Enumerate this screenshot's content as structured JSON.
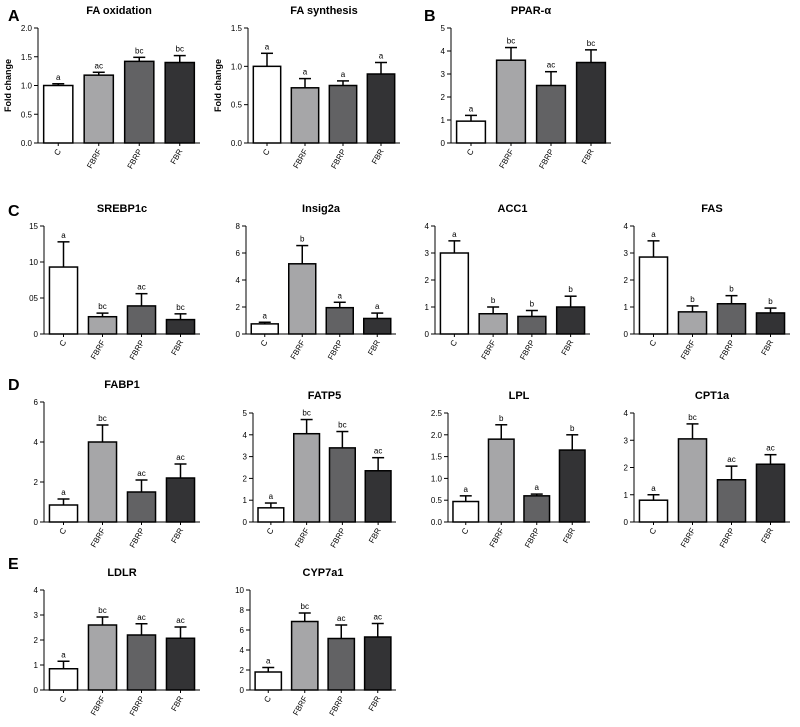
{
  "figure": {
    "panel_letters": [
      {
        "letter": "A"
      },
      {
        "letter": "B"
      },
      {
        "letter": "C"
      },
      {
        "letter": "D"
      },
      {
        "letter": "E"
      }
    ],
    "bar_colors": [
      "#ffffff",
      "#a6a6a8",
      "#626264",
      "#333335"
    ]
  },
  "chart_data": [
    {
      "id": "fa-oxidation",
      "type": "bar",
      "title": "FA oxidation",
      "ylabel": "Fold change",
      "categories": [
        "C",
        "FBRF",
        "FBRP",
        "FBR"
      ],
      "values": [
        1.0,
        1.18,
        1.42,
        1.4
      ],
      "errors": [
        0.03,
        0.05,
        0.07,
        0.12
      ],
      "sig": [
        "a",
        "ac",
        "bc",
        "bc"
      ],
      "ylim": [
        0,
        2.0
      ],
      "yticks": [
        0,
        0.5,
        1.0,
        1.5,
        2.0
      ],
      "ytick_labels": [
        "0.0",
        "0.5",
        "1.0",
        "1.5",
        "2.0"
      ]
    },
    {
      "id": "fa-synthesis",
      "type": "bar",
      "title": "FA synthesis",
      "ylabel": "Fold change",
      "categories": [
        "C",
        "FBRF",
        "FBRP",
        "FBR"
      ],
      "values": [
        1.0,
        0.72,
        0.75,
        0.9
      ],
      "errors": [
        0.17,
        0.12,
        0.06,
        0.15
      ],
      "sig": [
        "a",
        "a",
        "a",
        "a"
      ],
      "ylim": [
        0,
        1.5
      ],
      "yticks": [
        0,
        0.5,
        1.0,
        1.5
      ],
      "ytick_labels": [
        "0.0",
        "0.5",
        "1.0",
        "1.5"
      ]
    },
    {
      "id": "ppar-alpha",
      "type": "bar",
      "title": "PPAR-α",
      "ylabel": "",
      "categories": [
        "C",
        "FBRF",
        "FBRP",
        "FBR"
      ],
      "values": [
        0.95,
        3.6,
        2.5,
        3.5
      ],
      "errors": [
        0.25,
        0.55,
        0.6,
        0.55
      ],
      "sig": [
        "a",
        "bc",
        "ac",
        "bc"
      ],
      "ylim": [
        0,
        5
      ],
      "yticks": [
        0,
        1,
        2,
        3,
        4,
        5
      ],
      "ytick_labels": [
        "0",
        "1",
        "2",
        "3",
        "4",
        "5"
      ]
    },
    {
      "id": "srebp1c",
      "type": "bar",
      "title": "SREBP1c",
      "ylabel": "",
      "categories": [
        "C",
        "FBRF",
        "FBRP",
        "FBR"
      ],
      "values": [
        9.3,
        2.4,
        3.9,
        2.0
      ],
      "errors": [
        3.5,
        0.5,
        1.7,
        0.8
      ],
      "sig": [
        "a",
        "bc",
        "ac",
        "bc"
      ],
      "ylim": [
        0,
        15
      ],
      "yticks": [
        0,
        5,
        10,
        15
      ],
      "ytick_labels": [
        "0",
        "05",
        "10",
        "15"
      ]
    },
    {
      "id": "insig2a",
      "type": "bar",
      "title": "Insig2a",
      "ylabel": "",
      "categories": [
        "C",
        "FBRF",
        "FBRP",
        "FBR"
      ],
      "values": [
        0.75,
        5.2,
        1.95,
        1.15
      ],
      "errors": [
        0.12,
        1.35,
        0.4,
        0.4
      ],
      "sig": [
        "a",
        "b",
        "a",
        "a"
      ],
      "ylim": [
        0,
        8
      ],
      "yticks": [
        0,
        2,
        4,
        6,
        8
      ],
      "ytick_labels": [
        "0",
        "2",
        "4",
        "6",
        "8"
      ]
    },
    {
      "id": "acc1",
      "type": "bar",
      "title": "ACC1",
      "ylabel": "",
      "categories": [
        "C",
        "FBRF",
        "FBRP",
        "FBR"
      ],
      "values": [
        3.0,
        0.75,
        0.65,
        1.0
      ],
      "errors": [
        0.45,
        0.25,
        0.22,
        0.4
      ],
      "sig": [
        "a",
        "b",
        "b",
        "b"
      ],
      "ylim": [
        0,
        4
      ],
      "yticks": [
        0,
        1,
        2,
        3,
        4
      ],
      "ytick_labels": [
        "0",
        "1",
        "2",
        "3",
        "4"
      ]
    },
    {
      "id": "fas",
      "type": "bar",
      "title": "FAS",
      "ylabel": "",
      "categories": [
        "C",
        "FBRF",
        "FBRP",
        "FBR"
      ],
      "values": [
        2.85,
        0.82,
        1.12,
        0.78
      ],
      "errors": [
        0.6,
        0.22,
        0.3,
        0.18
      ],
      "sig": [
        "a",
        "b",
        "b",
        "b"
      ],
      "ylim": [
        0,
        4
      ],
      "yticks": [
        0,
        1,
        2,
        3,
        4
      ],
      "ytick_labels": [
        "0",
        "1",
        "2",
        "3",
        "4"
      ]
    },
    {
      "id": "fabp1",
      "type": "bar",
      "title": "FABP1",
      "ylabel": "",
      "categories": [
        "C",
        "FBRF",
        "FBRP",
        "FBR"
      ],
      "values": [
        0.85,
        4.0,
        1.5,
        2.2
      ],
      "errors": [
        0.3,
        0.85,
        0.6,
        0.7
      ],
      "sig": [
        "a",
        "bc",
        "ac",
        "ac"
      ],
      "ylim": [
        0,
        6
      ],
      "yticks": [
        0,
        2,
        4,
        6
      ],
      "ytick_labels": [
        "0",
        "2",
        "4",
        "6"
      ]
    },
    {
      "id": "fatp5",
      "type": "bar",
      "title": "FATP5",
      "ylabel": "",
      "categories": [
        "C",
        "FBRF",
        "FBRP",
        "FBR"
      ],
      "values": [
        0.65,
        4.05,
        3.4,
        2.35
      ],
      "errors": [
        0.22,
        0.65,
        0.75,
        0.6
      ],
      "sig": [
        "a",
        "bc",
        "bc",
        "ac"
      ],
      "ylim": [
        0,
        5
      ],
      "yticks": [
        0,
        1,
        2,
        3,
        4,
        5
      ],
      "ytick_labels": [
        "0",
        "1",
        "2",
        "3",
        "4",
        "5"
      ]
    },
    {
      "id": "lpl",
      "type": "bar",
      "title": "LPL",
      "ylabel": "",
      "categories": [
        "C",
        "FBRF",
        "FBRP",
        "FBR"
      ],
      "values": [
        0.47,
        1.9,
        0.6,
        1.65
      ],
      "errors": [
        0.13,
        0.33,
        0.04,
        0.35
      ],
      "sig": [
        "a",
        "b",
        "a",
        "b"
      ],
      "ylim": [
        0,
        2.5
      ],
      "yticks": [
        0,
        0.5,
        1.0,
        1.5,
        2.0,
        2.5
      ],
      "ytick_labels": [
        "0.0",
        "0.5",
        "1.0",
        "1.5",
        "2.0",
        "2.5"
      ]
    },
    {
      "id": "cpt1a",
      "type": "bar",
      "title": "CPT1a",
      "ylabel": "",
      "categories": [
        "C",
        "FBRF",
        "FBRP",
        "FBR"
      ],
      "values": [
        0.8,
        3.05,
        1.55,
        2.12
      ],
      "errors": [
        0.2,
        0.55,
        0.5,
        0.35
      ],
      "sig": [
        "a",
        "bc",
        "ac",
        "ac"
      ],
      "ylim": [
        0,
        4
      ],
      "yticks": [
        0,
        1,
        2,
        3,
        4
      ],
      "ytick_labels": [
        "0",
        "1",
        "2",
        "3",
        "4"
      ]
    },
    {
      "id": "ldlr",
      "type": "bar",
      "title": "LDLR",
      "ylabel": "",
      "categories": [
        "C",
        "FBRF",
        "FBRP",
        "FBR"
      ],
      "values": [
        0.85,
        2.6,
        2.2,
        2.07
      ],
      "errors": [
        0.3,
        0.32,
        0.45,
        0.45
      ],
      "sig": [
        "a",
        "bc",
        "ac",
        "ac"
      ],
      "ylim": [
        0,
        4
      ],
      "yticks": [
        0,
        1,
        2,
        3,
        4
      ],
      "ytick_labels": [
        "0",
        "1",
        "2",
        "3",
        "4"
      ]
    },
    {
      "id": "cyp7a1",
      "type": "bar",
      "title": "CYP7a1",
      "ylabel": "",
      "categories": [
        "C",
        "FBRF",
        "FBRP",
        "FBR"
      ],
      "values": [
        1.8,
        6.85,
        5.15,
        5.3
      ],
      "errors": [
        0.45,
        0.85,
        1.35,
        1.35
      ],
      "sig": [
        "a",
        "bc",
        "ac",
        "ac"
      ],
      "ylim": [
        0,
        10
      ],
      "yticks": [
        0,
        2,
        4,
        6,
        8,
        10
      ],
      "ytick_labels": [
        "0",
        "2",
        "4",
        "6",
        "8",
        "10"
      ]
    }
  ]
}
